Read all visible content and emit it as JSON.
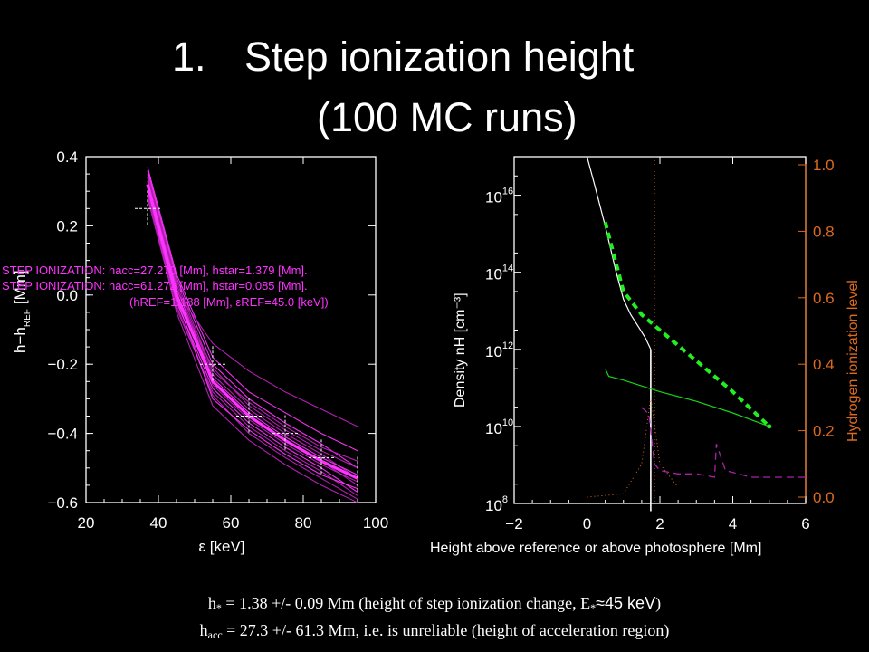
{
  "title": {
    "number": "1.",
    "line1": "Step ionization height",
    "line2": "(100 MC runs)"
  },
  "left_chart": {
    "ylabel_parts": {
      "main": "h−h",
      "sub": "REF",
      "unit": "[Mm]"
    },
    "xlabel": "ε [keV]",
    "xticks": [
      "20",
      "40",
      "60",
      "80",
      "100"
    ],
    "yticks": [
      "−0.6",
      "−0.4",
      "−0.2",
      "0.0",
      "0.2",
      "0.4"
    ],
    "annotations": [
      "STEP IONIZATION: hacc=27.270 [Mm], hstar=1.379 [Mm].",
      "STEP IONIZATION: hacc=61.272 [Mm], hstar=0.085 [Mm].",
      "(hREF=1.188 [Mm], εREF=45.0 [keV])"
    ]
  },
  "right_chart": {
    "ylabel_left": "Density nH [cm⁻³]",
    "ylabel_right": "Hydrogen ionization level",
    "xlabel": "Height above reference or above photosphere [Mm]",
    "xticks": [
      "−2",
      "0",
      "2",
      "4",
      "6"
    ],
    "yticks_left_base": [
      "10",
      "10",
      "10",
      "10",
      "10"
    ],
    "yticks_left_exp": [
      "8",
      "10",
      "12",
      "14",
      "16"
    ],
    "yticks_right": [
      "0.0",
      "0.2",
      "0.4",
      "0.6",
      "0.8",
      "1.0"
    ]
  },
  "colors": {
    "magenta": "#ff33ff",
    "purple_mc": "#bb22bb",
    "orange": "#dd6a1e",
    "green": "#19d219",
    "green_dash": "#22ee22",
    "dash_magenta": "#aa22aa",
    "white": "#ffffff"
  },
  "chart_data": [
    {
      "type": "line",
      "title": "",
      "xlabel": "ε [keV]",
      "ylabel": "h−hREF [Mm]",
      "xlim": [
        20,
        100
      ],
      "ylim": [
        -0.6,
        0.4
      ],
      "series": [
        {
          "x": [
            37,
            45,
            55,
            65,
            75,
            85,
            95
          ],
          "values": [
            0.36,
            0.05,
            -0.2,
            -0.3,
            -0.37,
            -0.43,
            -0.5
          ]
        },
        {
          "x": [
            37,
            45,
            55,
            65,
            75,
            85,
            95
          ],
          "values": [
            0.34,
            0.03,
            -0.23,
            -0.33,
            -0.4,
            -0.46,
            -0.53
          ]
        },
        {
          "x": [
            37,
            45,
            55,
            65,
            75,
            85,
            95
          ],
          "values": [
            0.32,
            0.0,
            -0.25,
            -0.35,
            -0.42,
            -0.48,
            -0.55
          ]
        },
        {
          "x": [
            37,
            45,
            55,
            65,
            75,
            85,
            95
          ],
          "values": [
            0.3,
            -0.02,
            -0.27,
            -0.37,
            -0.44,
            -0.5,
            -0.57
          ]
        },
        {
          "x": [
            37,
            45,
            55,
            65,
            75,
            85,
            95
          ],
          "values": [
            0.28,
            -0.04,
            -0.28,
            -0.38,
            -0.45,
            -0.51,
            -0.58
          ]
        },
        {
          "x": [
            37,
            45,
            55,
            65,
            75,
            85,
            95
          ],
          "values": [
            0.35,
            0.04,
            -0.22,
            -0.31,
            -0.38,
            -0.44,
            -0.48
          ]
        },
        {
          "x": [
            37,
            45,
            55,
            65,
            75,
            85,
            95
          ],
          "values": [
            0.33,
            0.02,
            -0.24,
            -0.34,
            -0.41,
            -0.47,
            -0.52
          ]
        },
        {
          "x": [
            37,
            45,
            55,
            65,
            75,
            85,
            95
          ],
          "values": [
            0.31,
            0.01,
            -0.26,
            -0.36,
            -0.43,
            -0.49,
            -0.54
          ]
        },
        {
          "x": [
            37,
            45,
            55,
            65,
            75,
            85,
            95
          ],
          "values": [
            0.29,
            -0.03,
            -0.29,
            -0.4,
            -0.47,
            -0.53,
            -0.59
          ]
        },
        {
          "x": [
            37,
            45,
            55,
            65,
            75,
            85,
            95
          ],
          "values": [
            0.37,
            0.06,
            -0.18,
            -0.28,
            -0.34,
            -0.4,
            -0.45
          ]
        },
        {
          "x": [
            37,
            45,
            55,
            65,
            75,
            85,
            95
          ],
          "values": [
            0.3,
            -0.05,
            -0.32,
            -0.42,
            -0.49,
            -0.55,
            -0.6
          ]
        },
        {
          "x": [
            37,
            45,
            55,
            65,
            75,
            85,
            95
          ],
          "values": [
            0.34,
            0.01,
            -0.14,
            -0.22,
            -0.28,
            -0.33,
            -0.38
          ]
        },
        {
          "x": [
            37,
            45,
            55,
            65,
            75,
            85,
            95
          ],
          "values": [
            0.32,
            -0.01,
            -0.3,
            -0.39,
            -0.46,
            -0.52,
            -0.56
          ]
        },
        {
          "x": [
            37,
            45,
            55,
            65,
            75,
            85,
            95
          ],
          "values": [
            0.33,
            0.0,
            -0.21,
            -0.32,
            -0.39,
            -0.45,
            -0.5
          ]
        }
      ],
      "mean_series": {
        "x": [
          37,
          45,
          55,
          65,
          75,
          85,
          95
        ],
        "values": [
          0.32,
          0.0,
          -0.25,
          -0.35,
          -0.42,
          -0.48,
          -0.53
        ]
      },
      "errorbars": [
        {
          "x": 37,
          "y": 0.25
        },
        {
          "x": 55,
          "y": -0.2
        },
        {
          "x": 65,
          "y": -0.35
        },
        {
          "x": 75,
          "y": -0.4
        },
        {
          "x": 85,
          "y": -0.47
        },
        {
          "x": 95,
          "y": -0.52
        }
      ]
    },
    {
      "type": "line",
      "title": "",
      "xlabel": "Height above reference or above photosphere [Mm]",
      "ylabel": "Density nH [cm⁻³]",
      "ylabel_right": "Hydrogen ionization level",
      "xlim": [
        -2,
        6
      ],
      "ylim_log10": [
        8,
        17
      ],
      "ylim_right": [
        0,
        1
      ],
      "series": [
        {
          "name": "",
          "axis": "left",
          "style": "solid-white",
          "x": [
            0,
            0.2,
            0.5,
            0.8,
            1.0,
            1.2,
            1.4,
            1.6,
            1.7,
            1.75
          ],
          "log10_values": [
            17,
            16.3,
            15.2,
            14.0,
            13.3,
            12.9,
            12.6,
            12.3,
            12.1,
            12.0
          ]
        },
        {
          "name": "",
          "axis": "left",
          "style": "vertical-white",
          "x": [
            1.75,
            1.75
          ],
          "log10_values": [
            12.0,
            7.8
          ]
        },
        {
          "name": "",
          "axis": "left",
          "style": "solid-green",
          "x": [
            0.5,
            0.6,
            1.0,
            2.0,
            3.0,
            4.0,
            5.0
          ],
          "log10_values": [
            11.5,
            11.3,
            11.2,
            10.9,
            10.65,
            10.35,
            10.0
          ]
        },
        {
          "name": "",
          "axis": "left",
          "style": "dashed-green-fit",
          "x": [
            0.5,
            1.0,
            1.5,
            2.0,
            3.0,
            4.0,
            5.0
          ],
          "log10_values": [
            15.3,
            13.5,
            12.9,
            12.5,
            11.7,
            10.9,
            10.0
          ]
        },
        {
          "name": "",
          "axis": "right",
          "style": "dashed-magenta",
          "x": [
            1.5,
            1.7,
            1.85,
            2.0,
            2.5,
            3.0,
            3.5,
            3.55,
            3.8,
            4.5,
            6.0
          ],
          "values": [
            0.27,
            0.25,
            0.1,
            0.08,
            0.07,
            0.07,
            0.06,
            0.16,
            0.08,
            0.06,
            0.06
          ]
        },
        {
          "name": "",
          "axis": "right",
          "style": "dotted-orange",
          "x": [
            0,
            1.0,
            1.5,
            1.75,
            2.0,
            2.5
          ],
          "values": [
            0.0,
            0.01,
            0.1,
            0.3,
            0.1,
            0.03
          ]
        }
      ],
      "vertical_marker": {
        "x": 1.85,
        "style": "dotted-orange"
      },
      "dashed_end_point": {
        "x": 5.0,
        "log10_value": 10.0
      }
    }
  ],
  "caption": {
    "line1_pre": "h",
    "line1_sub": "*",
    "line1_text": " = 1.38 +/- 0.09 Mm  (height of step ionization change, E",
    "line1_sub2": "*",
    "line1_approx": "≈45 keV",
    "line1_end": ")",
    "line2_pre": "h",
    "line2_sub": "acc",
    "line2_text": " = 27.3 +/- 61.3 Mm, i.e. is unreliable (height of acceleration region)"
  }
}
